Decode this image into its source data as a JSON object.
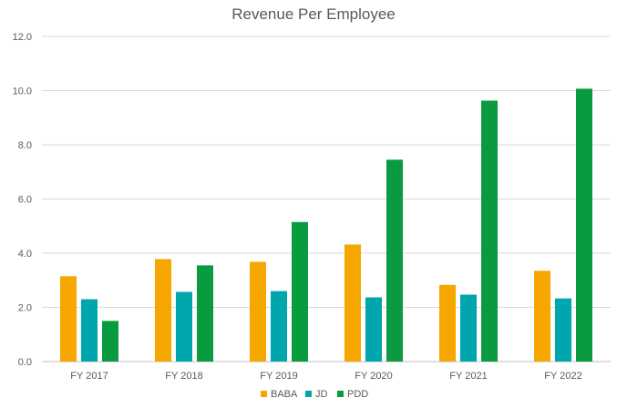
{
  "chart_data": {
    "type": "bar",
    "title": "Revenue Per Employee",
    "xlabel": "",
    "ylabel": "",
    "categories": [
      "FY 2017",
      "FY 2018",
      "FY 2019",
      "FY 2020",
      "FY 2021",
      "FY 2022"
    ],
    "series": [
      {
        "name": "BABA",
        "color": "#f5a700",
        "values": [
          3.15,
          3.78,
          3.68,
          4.32,
          2.83,
          3.35
        ]
      },
      {
        "name": "JD",
        "color": "#00a6ad",
        "values": [
          2.3,
          2.57,
          2.6,
          2.37,
          2.47,
          2.33
        ]
      },
      {
        "name": "PDD",
        "color": "#0a9a3f",
        "values": [
          1.5,
          3.55,
          5.15,
          7.45,
          9.63,
          10.07
        ]
      }
    ],
    "ylim": [
      0,
      12
    ],
    "yticks": [
      "0.0",
      "2.0",
      "4.0",
      "6.0",
      "8.0",
      "10.0",
      "12.0"
    ],
    "grid": true,
    "legend": "bottom"
  }
}
